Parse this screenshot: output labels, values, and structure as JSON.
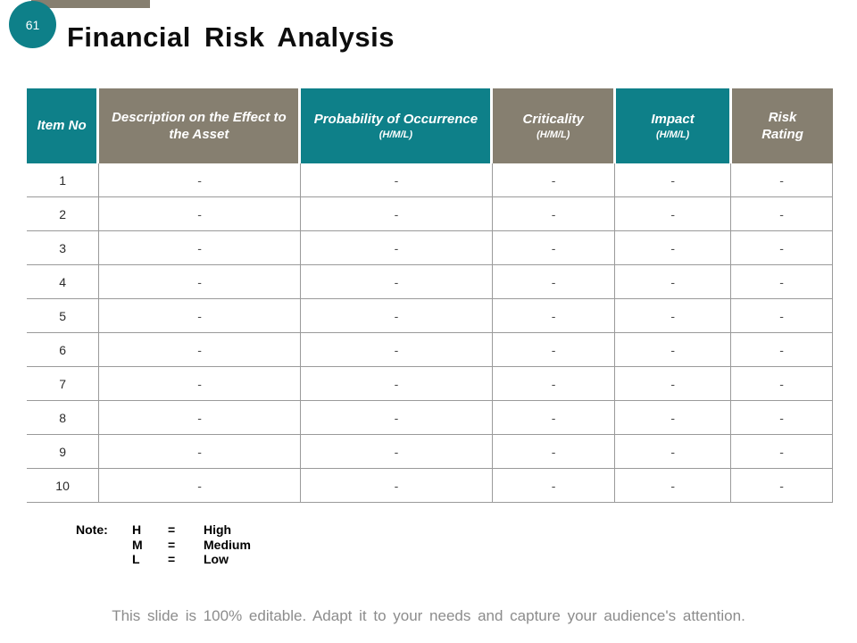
{
  "slide": {
    "page_number": "61",
    "title": "Financial Risk Analysis",
    "footer": "This slide is 100% editable. Adapt it to your needs and capture your audience's attention."
  },
  "colors": {
    "teal": "#0E8089",
    "taupe": "#867F70",
    "grid": "#9a9a9a"
  },
  "table": {
    "columns": [
      {
        "label": "Item No",
        "sub": "",
        "bg": "teal"
      },
      {
        "label": "Description on the Effect to the Asset",
        "sub": "",
        "bg": "taupe"
      },
      {
        "label": "Probability of Occurrence",
        "sub": "(H/M/L)",
        "bg": "teal"
      },
      {
        "label": "Criticality",
        "sub": "(H/M/L)",
        "bg": "taupe"
      },
      {
        "label": "Impact",
        "sub": "(H/M/L)",
        "bg": "teal"
      },
      {
        "label": "Risk Rating",
        "sub": "",
        "bg": "taupe"
      }
    ],
    "rows": [
      [
        "1",
        "-",
        "-",
        "-",
        "-",
        "-"
      ],
      [
        "2",
        "-",
        "-",
        "-",
        "-",
        "-"
      ],
      [
        "3",
        "-",
        "-",
        "-",
        "-",
        "-"
      ],
      [
        "4",
        "-",
        "-",
        "-",
        "-",
        "-"
      ],
      [
        "5",
        "-",
        "-",
        "-",
        "-",
        "-"
      ],
      [
        "6",
        "-",
        "-",
        "-",
        "-",
        "-"
      ],
      [
        "7",
        "-",
        "-",
        "-",
        "-",
        "-"
      ],
      [
        "8",
        "-",
        "-",
        "-",
        "-",
        "-"
      ],
      [
        "9",
        "-",
        "-",
        "-",
        "-",
        "-"
      ],
      [
        "10",
        "-",
        "-",
        "-",
        "-",
        "-"
      ]
    ]
  },
  "note": {
    "label": "Note:",
    "entries": [
      {
        "key": "H",
        "eq": "=",
        "value": "High"
      },
      {
        "key": "M",
        "eq": "=",
        "value": "Medium"
      },
      {
        "key": "L",
        "eq": "=",
        "value": "Low"
      }
    ]
  }
}
